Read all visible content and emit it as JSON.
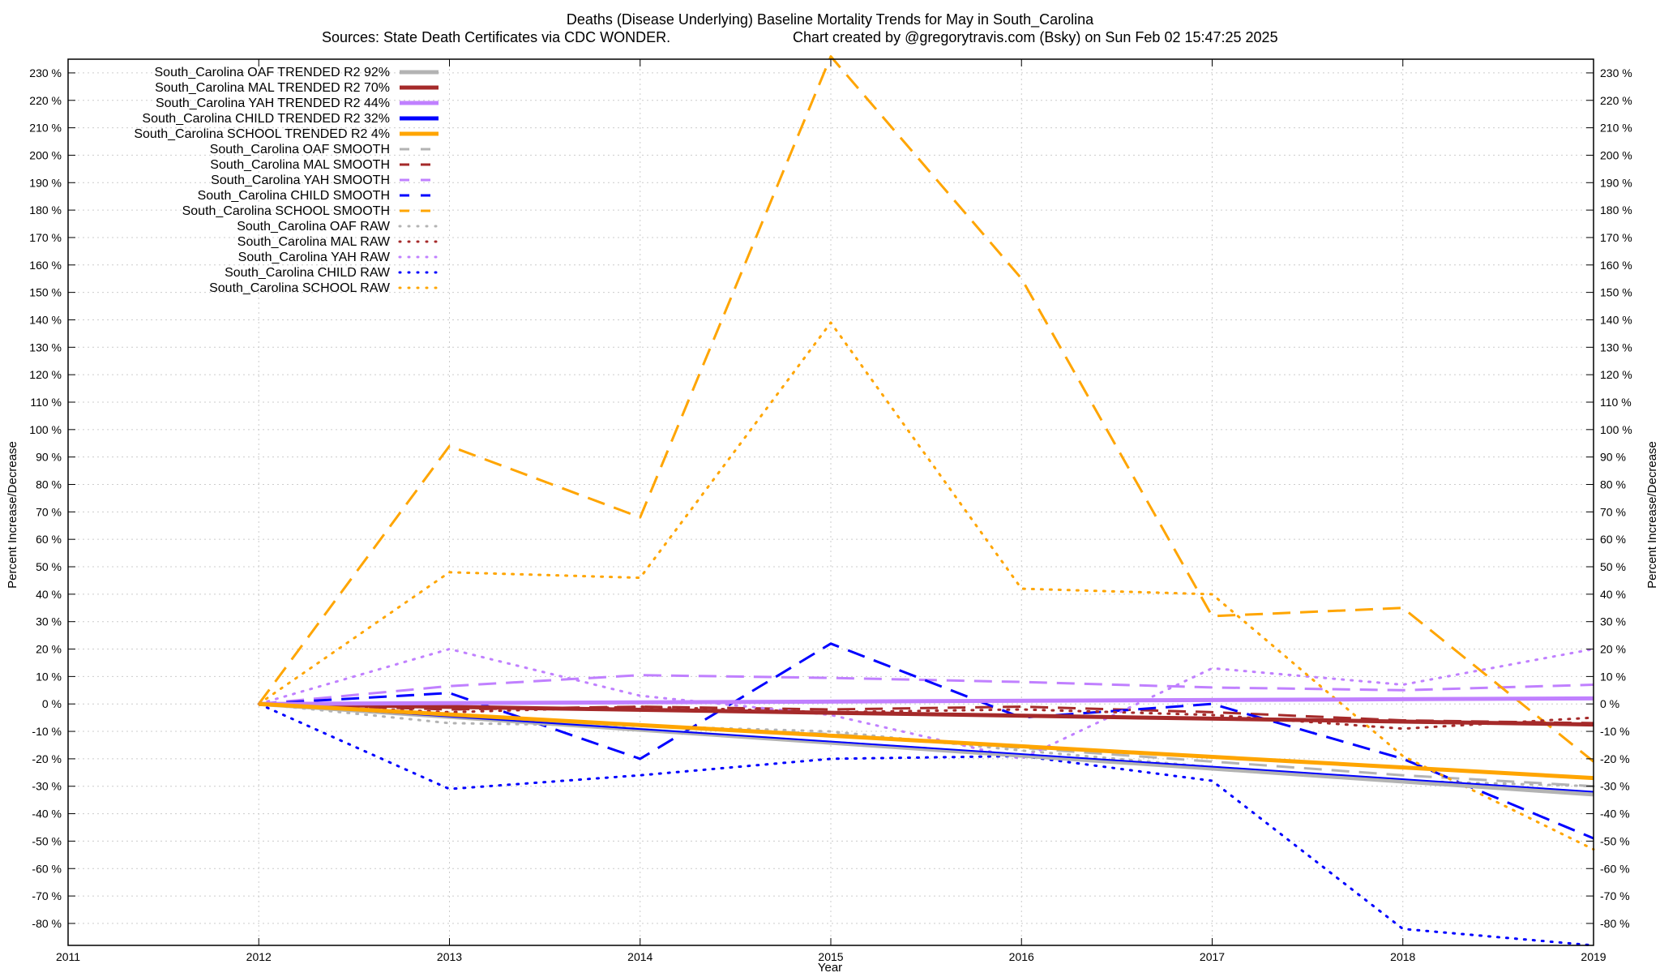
{
  "chart_data": {
    "type": "line",
    "title_line1": "Deaths (Disease Underlying)  Baseline Mortality Trends for May in South_Carolina",
    "title_line2_left": "Sources: State Death Certificates via CDC WONDER.",
    "title_line2_right": "Chart created by @gregorytravis.com (Bsky) on Sun Feb 02 15:47:25 2025",
    "xlabel": "Year",
    "ylabel_left": "Percent Increase/Decrease",
    "ylabel_right": "Percent Increase/Decrease",
    "xlim": [
      2011,
      2019
    ],
    "ylim": [
      -88,
      235
    ],
    "x_ticks": [
      2011,
      2012,
      2013,
      2014,
      2015,
      2016,
      2017,
      2018,
      2019
    ],
    "y_ticks": [
      230,
      220,
      210,
      200,
      190,
      180,
      170,
      160,
      150,
      140,
      130,
      120,
      110,
      100,
      90,
      80,
      70,
      60,
      50,
      40,
      30,
      20,
      10,
      0,
      -10,
      -20,
      -30,
      -40,
      -50,
      -60,
      -70,
      -80
    ],
    "y_tick_suffix": " %",
    "grid": true,
    "legend_position": "top-left",
    "series": [
      {
        "name": "South_Carolina OAF TRENDED R2  92%",
        "color": "#b3b3b3",
        "style": "solid",
        "width": 5,
        "x": [
          2012,
          2019
        ],
        "y": [
          0,
          -33
        ]
      },
      {
        "name": "South_Carolina MAL TRENDED R2  70%",
        "color": "#a52a2a",
        "style": "solid",
        "width": 5,
        "x": [
          2012,
          2019
        ],
        "y": [
          0,
          -7.5
        ]
      },
      {
        "name": "South_Carolina YAH TRENDED R2  44%",
        "color": "#c080ff",
        "style": "solid",
        "width": 5,
        "x": [
          2012,
          2019
        ],
        "y": [
          0,
          2
        ]
      },
      {
        "name": "South_Carolina CHILD TRENDED R2  32%",
        "color": "#0000ff",
        "style": "solid",
        "width": 2,
        "x": [
          2012,
          2019
        ],
        "y": [
          0,
          -32
        ]
      },
      {
        "name": "South_Carolina SCHOOL TRENDED R2   4%",
        "color": "#ffa500",
        "style": "solid",
        "width": 5,
        "x": [
          2012,
          2019
        ],
        "y": [
          0,
          -27
        ]
      },
      {
        "name": "South_Carolina OAF SMOOTH",
        "color": "#b3b3b3",
        "style": "dashed",
        "width": 3,
        "x": [
          2012,
          2013,
          2014,
          2015,
          2016,
          2017,
          2018,
          2019
        ],
        "y": [
          0,
          -4,
          -8,
          -11,
          -16,
          -21,
          -26,
          -30
        ]
      },
      {
        "name": "South_Carolina MAL SMOOTH",
        "color": "#a52a2a",
        "style": "dashed",
        "width": 3,
        "x": [
          2012,
          2013,
          2014,
          2015,
          2016,
          2017,
          2018,
          2019
        ],
        "y": [
          0,
          -2,
          -1,
          -2,
          -1,
          -3,
          -6,
          -7
        ]
      },
      {
        "name": "South_Carolina YAH SMOOTH",
        "color": "#c080ff",
        "style": "dashed",
        "width": 3,
        "x": [
          2012,
          2013,
          2014,
          2015,
          2016,
          2017,
          2018,
          2019
        ],
        "y": [
          0,
          6.5,
          10.5,
          9.5,
          8,
          6,
          5,
          7
        ]
      },
      {
        "name": "South_Carolina CHILD SMOOTH",
        "color": "#0000ff",
        "style": "dashed",
        "width": 3,
        "x": [
          2012,
          2013,
          2014,
          2015,
          2016,
          2017,
          2018,
          2019
        ],
        "y": [
          0,
          4,
          -20,
          22,
          -5,
          0,
          -20,
          -49
        ]
      },
      {
        "name": "South_Carolina SCHOOL SMOOTH",
        "color": "#ffa500",
        "style": "dashed",
        "width": 3,
        "x": [
          2012,
          2013,
          2014,
          2015,
          2016,
          2017,
          2018,
          2019
        ],
        "y": [
          0,
          94,
          68,
          236,
          155,
          32,
          35,
          -21
        ]
      },
      {
        "name": "South_Carolina OAF RAW",
        "color": "#b3b3b3",
        "style": "dotted",
        "width": 3,
        "x": [
          2012,
          2013,
          2014,
          2015,
          2016,
          2017,
          2018,
          2019
        ],
        "y": [
          0,
          -7,
          -8,
          -10,
          -17,
          -23,
          -28,
          -30
        ]
      },
      {
        "name": "South_Carolina MAL RAW",
        "color": "#a52a2a",
        "style": "dotted",
        "width": 3,
        "x": [
          2012,
          2013,
          2014,
          2015,
          2016,
          2017,
          2018,
          2019
        ],
        "y": [
          0,
          -3,
          -1,
          -3,
          -2,
          -4,
          -9,
          -5
        ]
      },
      {
        "name": "South_Carolina YAH RAW",
        "color": "#c080ff",
        "style": "dotted",
        "width": 3,
        "x": [
          2012,
          2013,
          2014,
          2015,
          2016,
          2017,
          2018,
          2019
        ],
        "y": [
          0,
          20,
          3,
          -4,
          -20,
          13,
          7,
          20
        ]
      },
      {
        "name": "South_Carolina CHILD RAW",
        "color": "#0000ff",
        "style": "dotted",
        "width": 3,
        "x": [
          2012,
          2013,
          2014,
          2015,
          2016,
          2017,
          2018,
          2019
        ],
        "y": [
          0,
          -31,
          -26,
          -20,
          -19,
          -28,
          -82,
          -88
        ]
      },
      {
        "name": "South_Carolina SCHOOL RAW",
        "color": "#ffa500",
        "style": "dotted",
        "width": 3,
        "x": [
          2012,
          2013,
          2014,
          2015,
          2016,
          2017,
          2018,
          2019
        ],
        "y": [
          0,
          48,
          46,
          139,
          42,
          40,
          -19,
          -53
        ]
      }
    ]
  }
}
